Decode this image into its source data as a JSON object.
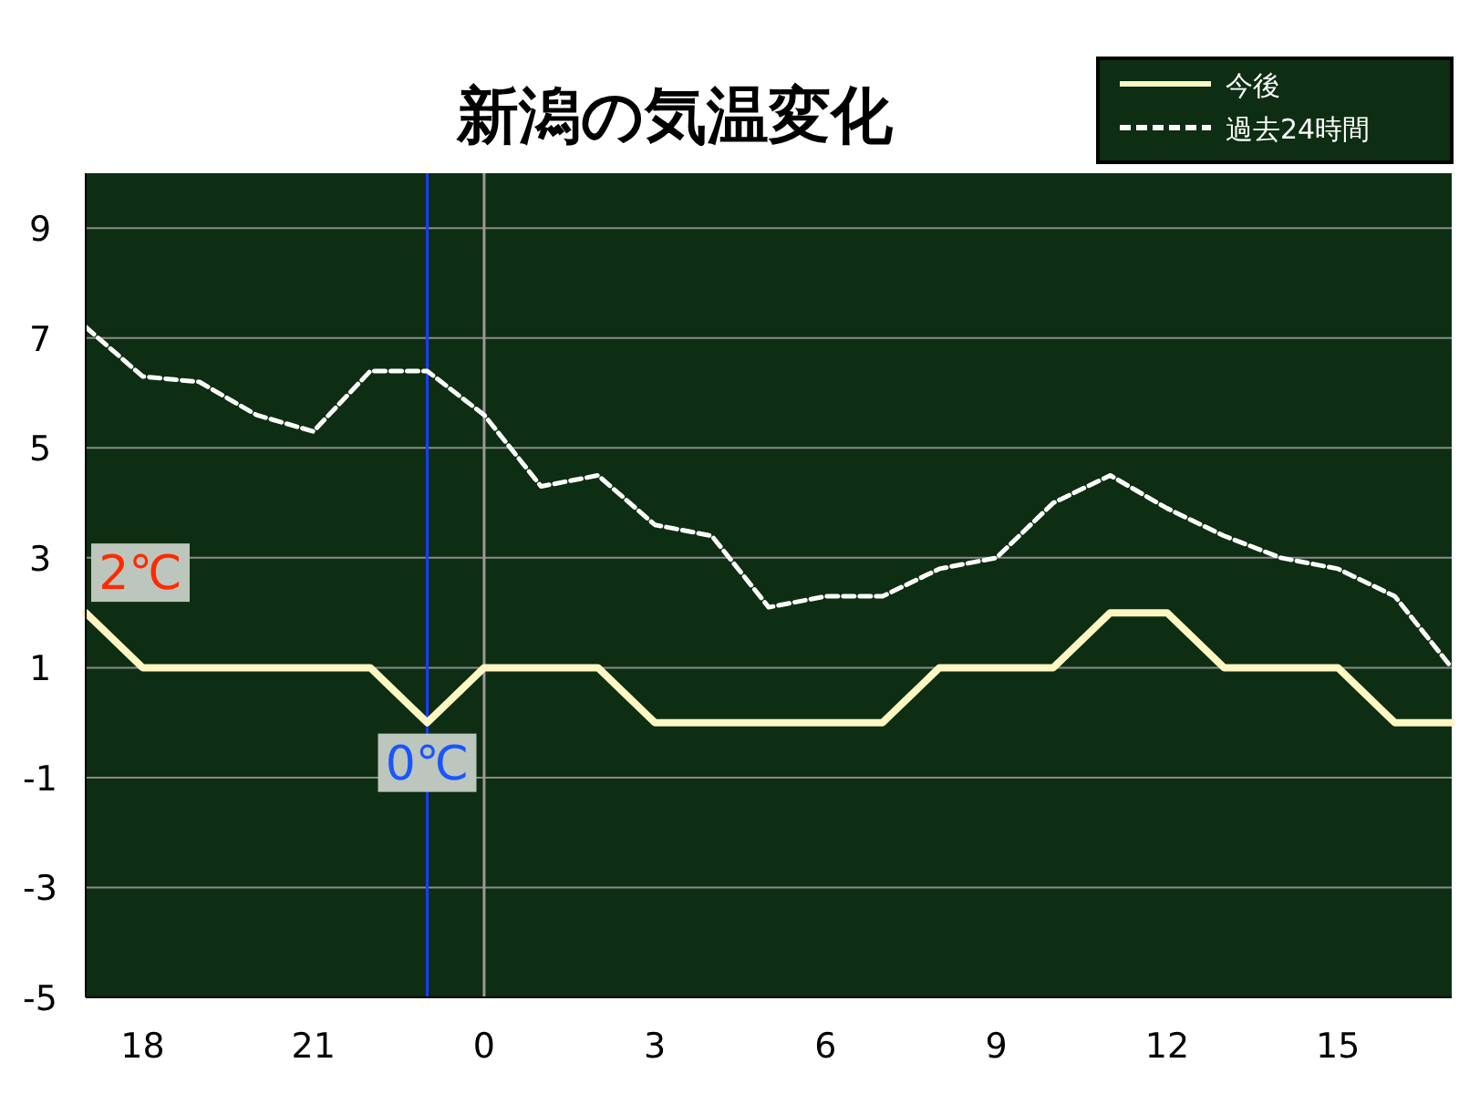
{
  "chart_data": {
    "type": "line",
    "title": "新潟の気温変化",
    "categories": [
      null,
      "18",
      null,
      null,
      "21",
      null,
      null,
      "0",
      null,
      null,
      "3",
      null,
      null,
      "6",
      null,
      null,
      "9",
      null,
      null,
      "12",
      null,
      null,
      "15",
      null,
      null
    ],
    "series": [
      {
        "name": "今後",
        "color": "#fff7c2",
        "line_style": "solid",
        "values": [
          2,
          1,
          1,
          1,
          1,
          1,
          0,
          1,
          1,
          1,
          0,
          0,
          0,
          0,
          0,
          1,
          1,
          1,
          2,
          2,
          1,
          1,
          1,
          0,
          0
        ]
      },
      {
        "name": "過去24時間",
        "color": "#ffffff",
        "line_style": "dashed",
        "values": [
          7.2,
          6.3,
          6.2,
          5.6,
          5.3,
          6.4,
          6.4,
          5.6,
          4.3,
          4.5,
          3.6,
          3.4,
          2.1,
          2.3,
          2.3,
          2.8,
          3.0,
          4.0,
          4.5,
          3.9,
          3.4,
          3.0,
          2.8,
          2.3,
          1.0
        ]
      }
    ],
    "ylim": [
      -5,
      10
    ],
    "yticks": [
      -5,
      -3,
      -1,
      1,
      3,
      5,
      7,
      9
    ],
    "grid": "y",
    "legend": "top right",
    "marker": "none",
    "ref_lines": [
      {
        "axis": "x",
        "value": "0",
        "color": "#9a9a9a"
      }
    ],
    "annotations": [
      "2℃",
      "0℃"
    ]
  }
}
